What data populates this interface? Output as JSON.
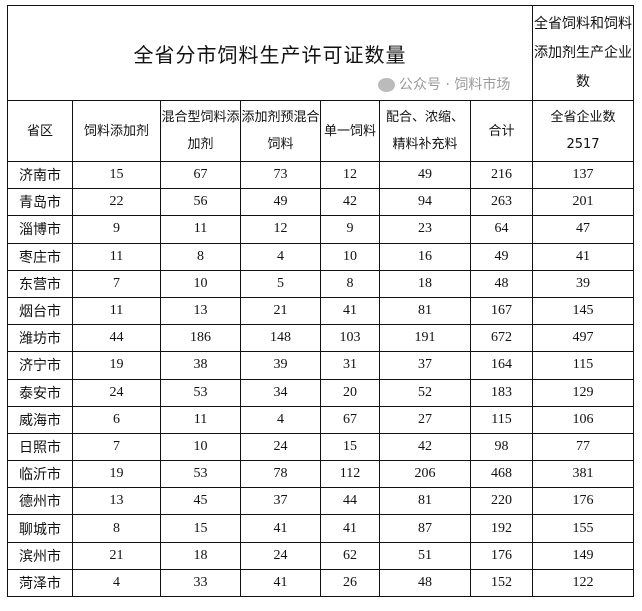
{
  "title": "全省分市饲料生产许可证数量",
  "side_header": "全省饲料和饲料添加剂生产企业数",
  "columns": [
    "省区",
    "饲料添加剂",
    "混合型饲料添加剂",
    "添加剂预混合饲料",
    "单一饲料",
    "配合、浓缩、精料补充料",
    "合计",
    "全省企业数"
  ],
  "total_enterprises": "2517",
  "rows": [
    [
      "济南市",
      "15",
      "67",
      "73",
      "12",
      "49",
      "216",
      "137"
    ],
    [
      "青岛市",
      "22",
      "56",
      "49",
      "42",
      "94",
      "263",
      "201"
    ],
    [
      "淄博市",
      "9",
      "11",
      "12",
      "9",
      "23",
      "64",
      "47"
    ],
    [
      "枣庄市",
      "11",
      "8",
      "4",
      "10",
      "16",
      "49",
      "41"
    ],
    [
      "东营市",
      "7",
      "10",
      "5",
      "8",
      "18",
      "48",
      "39"
    ],
    [
      "烟台市",
      "11",
      "13",
      "21",
      "41",
      "81",
      "167",
      "145"
    ],
    [
      "潍坊市",
      "44",
      "186",
      "148",
      "103",
      "191",
      "672",
      "497"
    ],
    [
      "济宁市",
      "19",
      "38",
      "39",
      "31",
      "37",
      "164",
      "115"
    ],
    [
      "泰安市",
      "24",
      "53",
      "34",
      "20",
      "52",
      "183",
      "129"
    ],
    [
      "威海市",
      "6",
      "11",
      "4",
      "67",
      "27",
      "115",
      "106"
    ],
    [
      "日照市",
      "7",
      "10",
      "24",
      "15",
      "42",
      "98",
      "77"
    ],
    [
      "临沂市",
      "19",
      "53",
      "78",
      "112",
      "206",
      "468",
      "381"
    ],
    [
      "德州市",
      "13",
      "45",
      "37",
      "44",
      "81",
      "220",
      "176"
    ],
    [
      "聊城市",
      "8",
      "15",
      "41",
      "41",
      "87",
      "192",
      "155"
    ],
    [
      "滨州市",
      "21",
      "18",
      "24",
      "62",
      "51",
      "176",
      "149"
    ],
    [
      "菏泽市",
      "4",
      "33",
      "41",
      "26",
      "48",
      "152",
      "122"
    ]
  ],
  "watermark": "公众号 · 饲料市场",
  "watermark_icon": "wechat-icon"
}
